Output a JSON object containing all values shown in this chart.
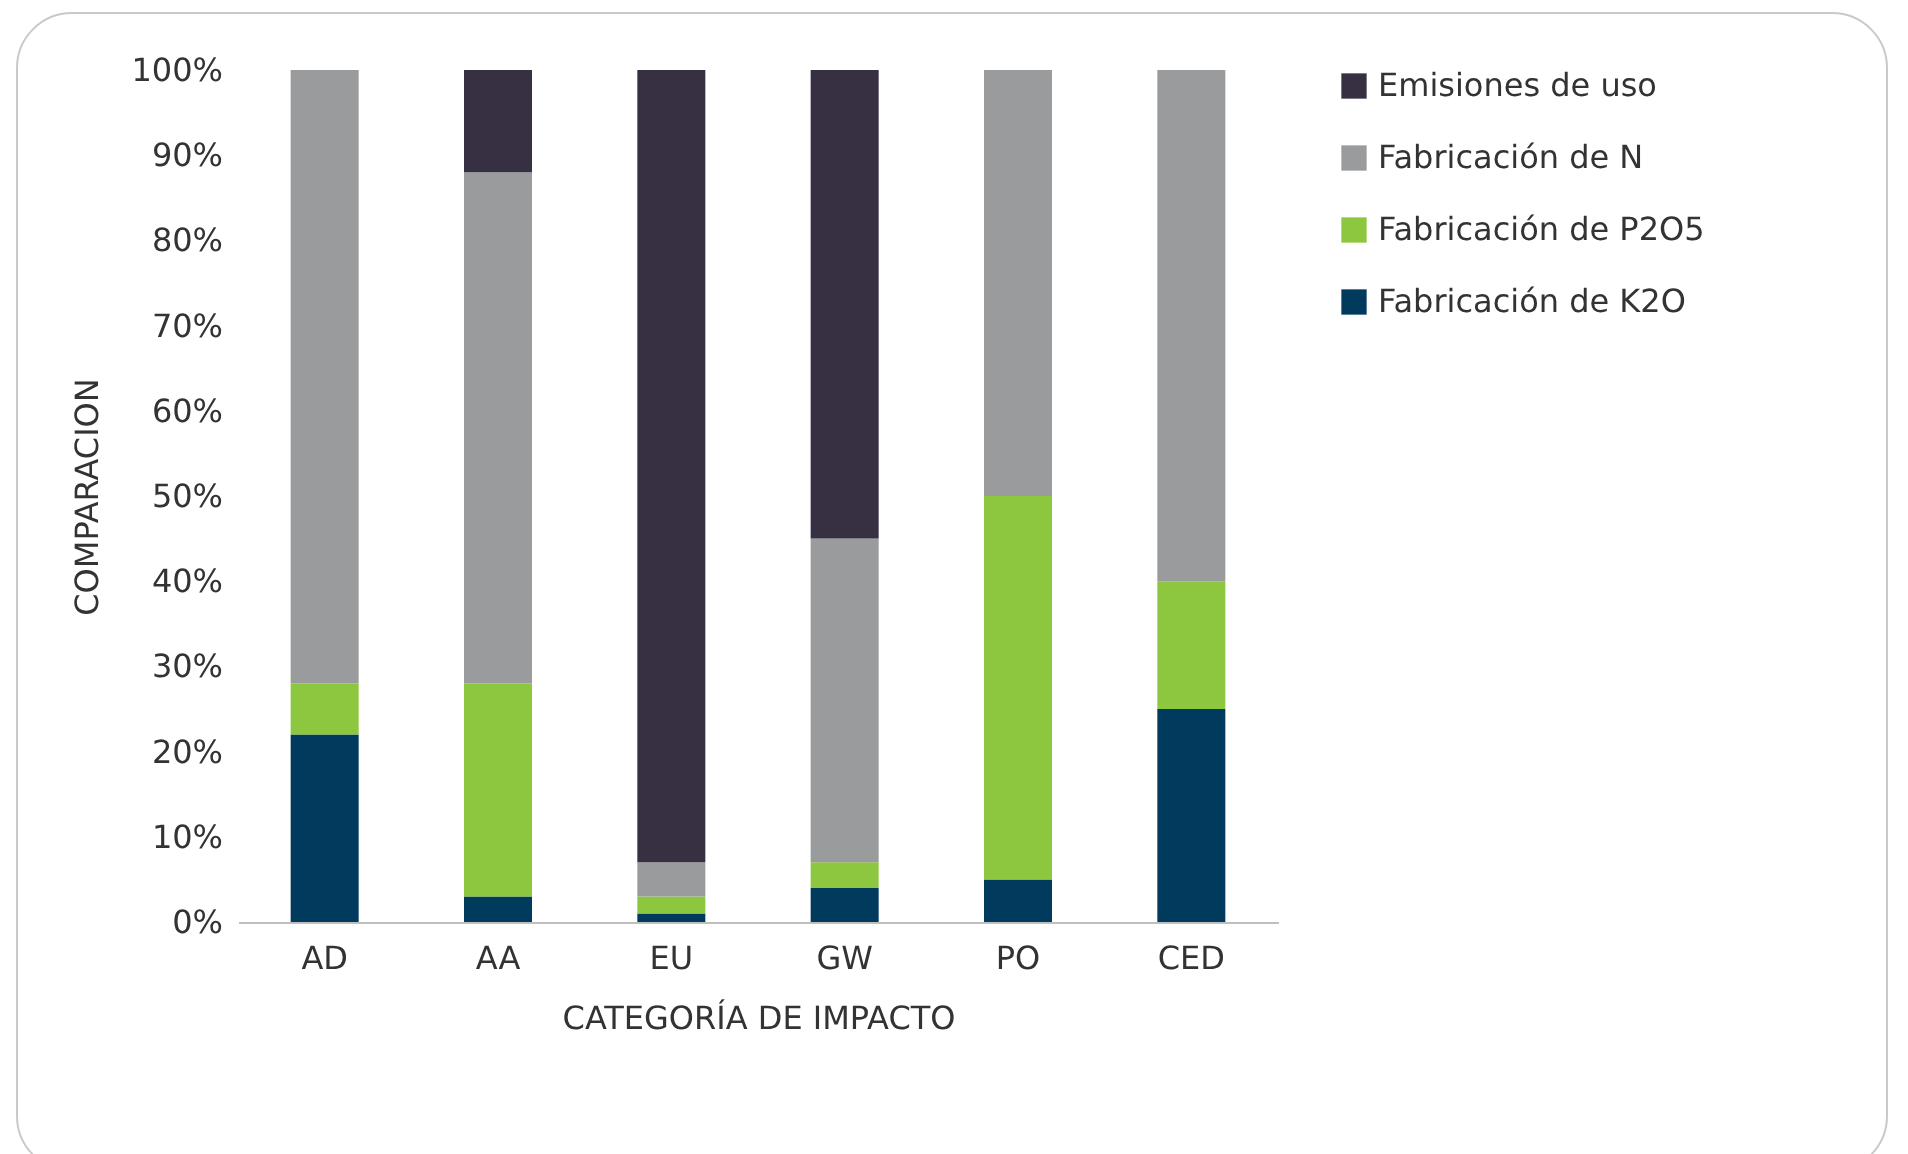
{
  "chart_data": {
    "type": "bar",
    "stacked": true,
    "xlabel": "CATEGORÍA DE IMPACTO",
    "ylabel": "COMPARACION",
    "categories": [
      "AD",
      "AA",
      "EU",
      "GW",
      "PO",
      "CED"
    ],
    "series": [
      {
        "name": "Fabricación de K2O",
        "color": "#003a5d",
        "values": [
          22,
          3,
          1,
          4,
          5,
          25
        ]
      },
      {
        "name": "Fabricación de P2O5",
        "color": "#8dc63f",
        "values": [
          6,
          25,
          2,
          3,
          45,
          15
        ]
      },
      {
        "name": "Fabricación de N",
        "color": "#9a9b9c",
        "values": [
          72,
          60,
          4,
          38,
          50,
          60
        ]
      },
      {
        "name": "Emisiones de uso",
        "color": "#372f42",
        "values": [
          0,
          12,
          93,
          55,
          0,
          0
        ]
      }
    ],
    "ylim": [
      0,
      100
    ],
    "yticks": [
      {
        "value": 0,
        "label": "0%"
      },
      {
        "value": 10,
        "label": "10%"
      },
      {
        "value": 20,
        "label": "20%"
      },
      {
        "value": 30,
        "label": "30%"
      },
      {
        "value": 40,
        "label": "40%"
      },
      {
        "value": 50,
        "label": "50%"
      },
      {
        "value": 60,
        "label": "60%"
      },
      {
        "value": 70,
        "label": "70%"
      },
      {
        "value": 80,
        "label": "80%"
      },
      {
        "value": 90,
        "label": "90%"
      },
      {
        "value": 100,
        "label": "100%"
      }
    ],
    "grid": false,
    "legend": "right"
  }
}
